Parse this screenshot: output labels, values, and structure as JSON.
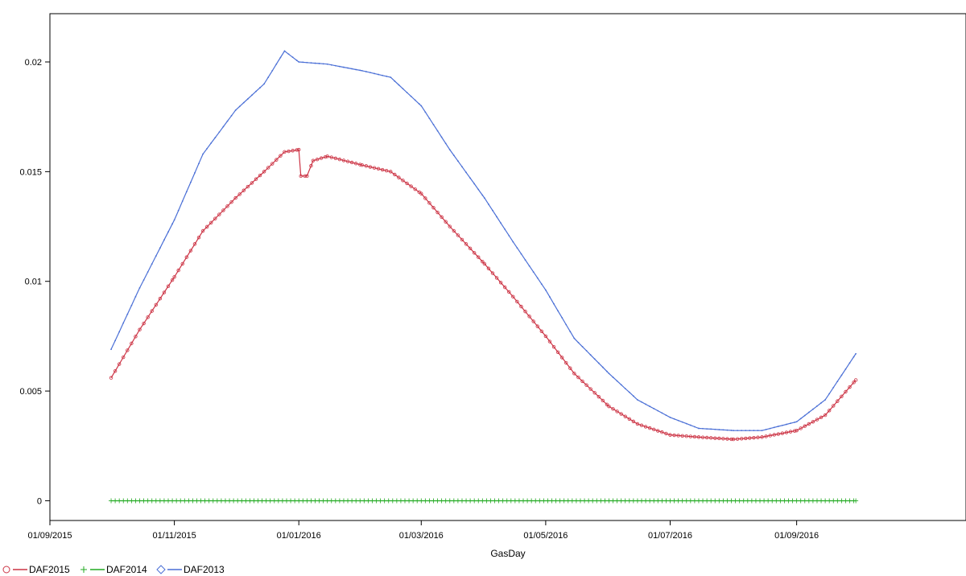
{
  "chart_data": {
    "type": "line",
    "title": "",
    "xlabel": "GasDay",
    "ylabel": "",
    "xlim": [
      "2015-09-01",
      "2016-11-23"
    ],
    "ylim": [
      -0.0009,
      0.0222
    ],
    "x_ticks": [
      "01/09/2015",
      "01/11/2015",
      "01/01/2016",
      "01/03/2016",
      "01/05/2016",
      "01/07/2016",
      "01/09/2016"
    ],
    "y_ticks": [
      0,
      0.005,
      0.01,
      0.015,
      0.02
    ],
    "y_tick_labels": [
      "0",
      "0.005",
      "0.01",
      "0.015",
      "0.02"
    ],
    "legend_position": "bottom-left",
    "grid": false,
    "series": [
      {
        "name": "DAF2015",
        "color": "#cc3344",
        "marker": "circle",
        "x": [
          "2015-10-01",
          "2015-10-15",
          "2015-11-01",
          "2015-11-15",
          "2015-12-01",
          "2015-12-15",
          "2015-12-25",
          "2016-01-01",
          "2016-01-02",
          "2016-01-05",
          "2016-01-08",
          "2016-01-15",
          "2016-02-01",
          "2016-02-15",
          "2016-03-01",
          "2016-03-15",
          "2016-04-01",
          "2016-04-15",
          "2016-05-01",
          "2016-05-15",
          "2016-06-01",
          "2016-06-15",
          "2016-07-01",
          "2016-07-15",
          "2016-08-01",
          "2016-08-15",
          "2016-09-01",
          "2016-09-15",
          "2016-09-30"
        ],
        "values": [
          0.0056,
          0.0078,
          0.0102,
          0.0123,
          0.0138,
          0.015,
          0.0159,
          0.016,
          0.0148,
          0.0148,
          0.0155,
          0.0157,
          0.0153,
          0.015,
          0.014,
          0.0125,
          0.0108,
          0.0093,
          0.0075,
          0.0058,
          0.0043,
          0.0035,
          0.003,
          0.0029,
          0.0028,
          0.0029,
          0.0032,
          0.0039,
          0.0055
        ]
      },
      {
        "name": "DAF2014",
        "color": "#22aa22",
        "marker": "plus",
        "x": [
          "2015-10-01",
          "2016-09-30"
        ],
        "values": [
          0,
          0
        ]
      },
      {
        "name": "DAF2013",
        "color": "#4a6fd6",
        "marker": "diamond",
        "x": [
          "2015-10-01",
          "2015-10-15",
          "2015-11-01",
          "2015-11-15",
          "2015-12-01",
          "2015-12-15",
          "2015-12-25",
          "2016-01-01",
          "2016-01-15",
          "2016-02-01",
          "2016-02-15",
          "2016-03-01",
          "2016-03-15",
          "2016-04-01",
          "2016-04-15",
          "2016-05-01",
          "2016-05-15",
          "2016-06-01",
          "2016-06-15",
          "2016-07-01",
          "2016-07-15",
          "2016-08-01",
          "2016-08-15",
          "2016-09-01",
          "2016-09-15",
          "2016-09-30"
        ],
        "values": [
          0.0069,
          0.0097,
          0.0128,
          0.0158,
          0.0178,
          0.019,
          0.0205,
          0.02,
          0.0199,
          0.0196,
          0.0193,
          0.018,
          0.016,
          0.0138,
          0.0118,
          0.0096,
          0.0074,
          0.0058,
          0.0046,
          0.0038,
          0.0033,
          0.0032,
          0.0032,
          0.0036,
          0.0046,
          0.0067
        ]
      }
    ]
  }
}
